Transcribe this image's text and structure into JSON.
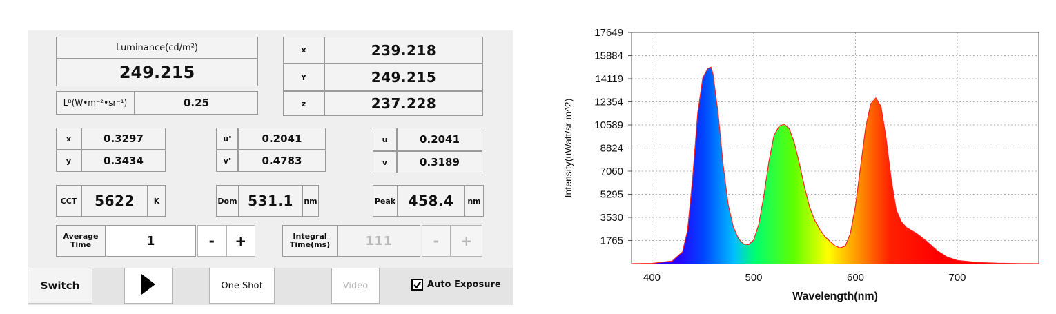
{
  "luminance": {
    "label": "Luminance(cd/m²)",
    "value": "249.215"
  },
  "lb": {
    "label": "Lᴮ(W•m⁻²•sr⁻¹)",
    "value": "0.25"
  },
  "xyz": {
    "X": {
      "label": "x",
      "value": "239.218"
    },
    "Y": {
      "label": "Y",
      "value": "249.215"
    },
    "Z": {
      "label": "z",
      "value": "237.228"
    }
  },
  "cie1931": {
    "x_label": "x",
    "x": "0.3297",
    "y_label": "y",
    "y": "0.3434"
  },
  "cie1976": {
    "u_label": "u'",
    "u": "0.2041",
    "v_label": "v'",
    "v": "0.4783"
  },
  "cie1960": {
    "u_label": "u",
    "u": "0.2041",
    "v_label": "v",
    "v": "0.3189"
  },
  "cct": {
    "label": "CCT",
    "value": "5622",
    "unit": "K"
  },
  "dom": {
    "label": "Dom",
    "value": "531.1",
    "unit": "nm"
  },
  "peak": {
    "label": "Peak",
    "value": "458.4",
    "unit": "nm"
  },
  "average": {
    "label_line1": "Average",
    "label_line2": "Time",
    "value": "1",
    "minus": "-",
    "plus": "+"
  },
  "integral": {
    "label_line1": "Integral",
    "label_line2": "Time(ms)",
    "value": "111",
    "minus": "-",
    "plus": "+"
  },
  "toolbar": {
    "switch": "Switch",
    "play_icon": "play-icon",
    "one_shot": "One Shot",
    "video": "Video",
    "auto_exposure": "Auto Exposure",
    "auto_exposure_checked": true
  },
  "chart_data": {
    "type": "area",
    "title": "",
    "xlabel": "Wavelength(nm)",
    "ylabel": "Intensity(uWatt/sr-m^2)",
    "xlim": [
      380,
      780
    ],
    "ylim": [
      0,
      17649
    ],
    "xticks": [
      400,
      500,
      600,
      700
    ],
    "yticks": [
      1765,
      3530,
      5295,
      7060,
      8824,
      10589,
      12354,
      14119,
      15884,
      17649
    ],
    "grid": true,
    "fill": "spectrum-gradient",
    "line_color": "#ff2020",
    "x": [
      380,
      400,
      420,
      430,
      435,
      440,
      445,
      450,
      455,
      458,
      460,
      465,
      470,
      475,
      480,
      485,
      490,
      495,
      500,
      505,
      510,
      515,
      520,
      525,
      530,
      535,
      540,
      545,
      550,
      555,
      560,
      565,
      570,
      575,
      580,
      585,
      590,
      595,
      600,
      605,
      610,
      615,
      620,
      625,
      630,
      635,
      640,
      645,
      650,
      660,
      670,
      680,
      690,
      700,
      720,
      740,
      760,
      780
    ],
    "y": [
      0,
      20,
      200,
      900,
      2500,
      6500,
      11500,
      14200,
      14900,
      15000,
      14500,
      11500,
      7500,
      4500,
      2800,
      1900,
      1500,
      1450,
      1800,
      3000,
      5200,
      7800,
      9800,
      10500,
      10650,
      10300,
      9200,
      7600,
      5800,
      4300,
      3300,
      2600,
      2050,
      1700,
      1350,
      1200,
      1350,
      2300,
      4400,
      7400,
      10400,
      12200,
      12650,
      12000,
      9600,
      6500,
      4100,
      3200,
      2750,
      2300,
      1700,
      1000,
      500,
      250,
      90,
      30,
      10,
      0
    ]
  }
}
